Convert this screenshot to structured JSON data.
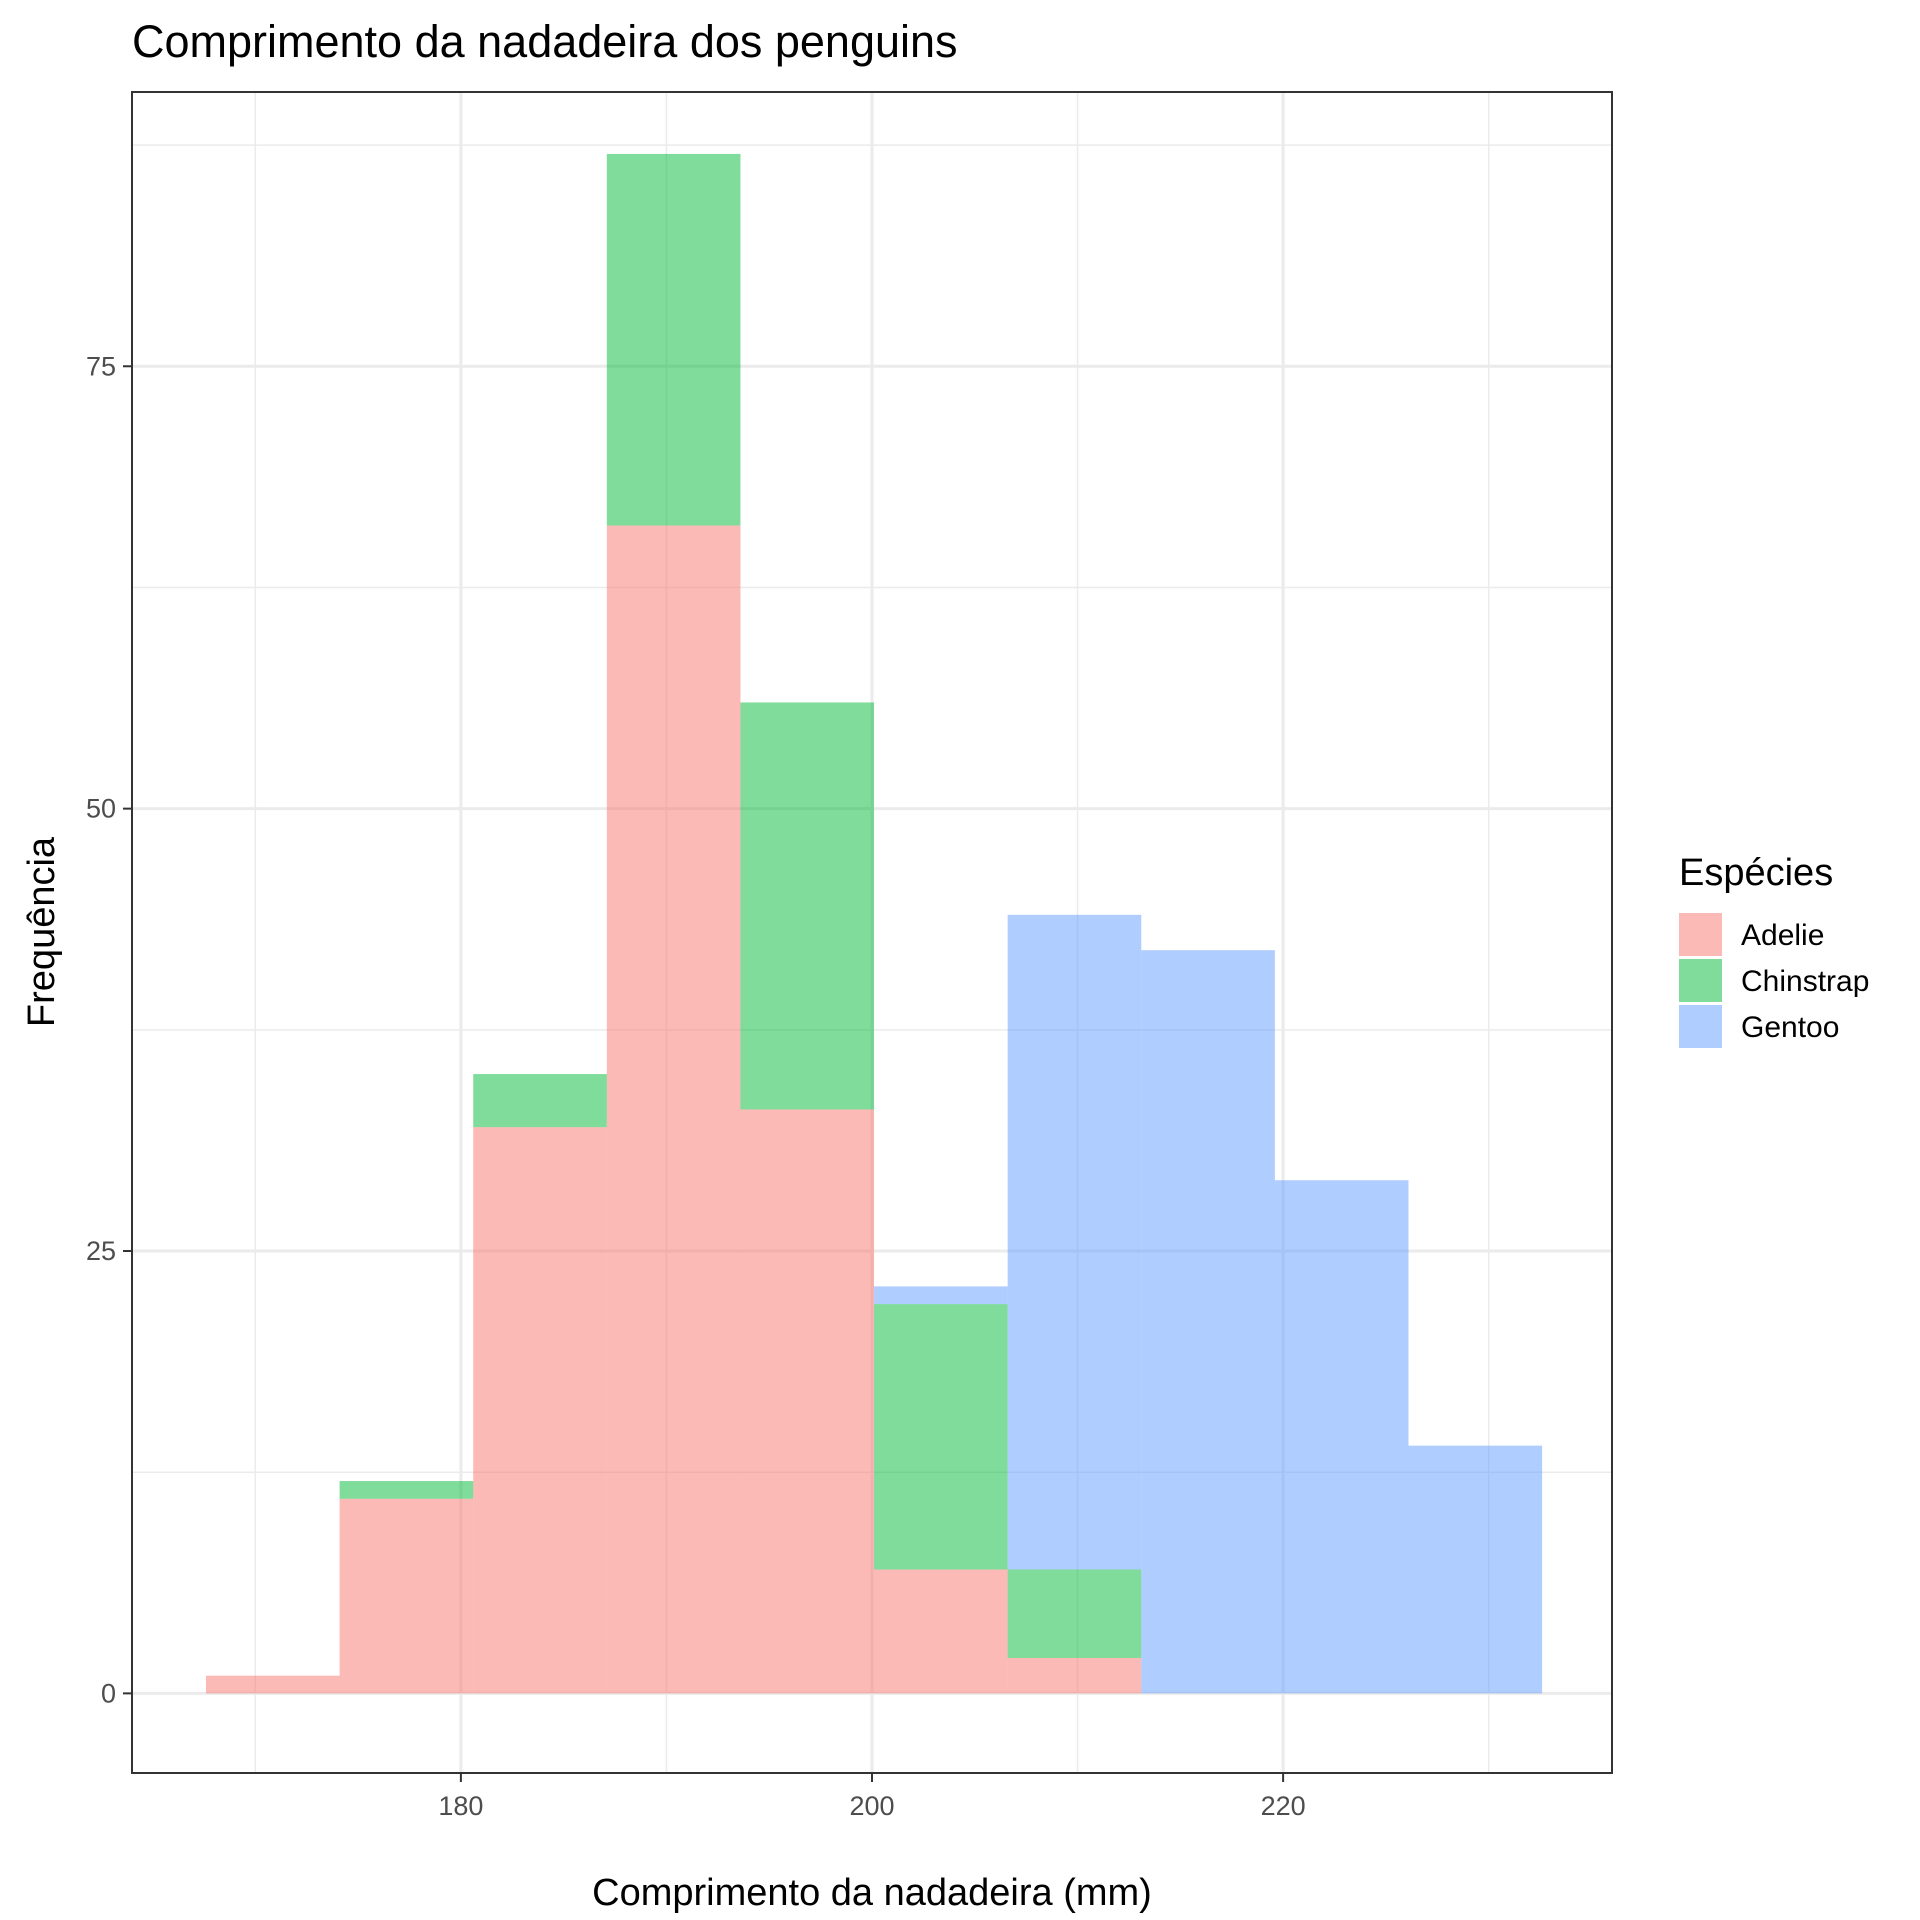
{
  "chart_data": {
    "type": "bar",
    "title": "Comprimento da nadadeira dos penguins",
    "xlabel": "Comprimento da nadadeira (mm)",
    "ylabel": "Frequência",
    "xlim": [
      164.0,
      236.0
    ],
    "ylim": [
      -4.5,
      90.5
    ],
    "x_ticks": [
      180,
      200,
      220
    ],
    "y_ticks": [
      0,
      25,
      50,
      75
    ],
    "x_minor_ticks": [
      170,
      190,
      210,
      230
    ],
    "y_minor_ticks": [
      12.5,
      37.5,
      62.5,
      87.5
    ],
    "bin_edges": [
      167.6,
      174.1,
      180.6,
      187.1,
      193.6,
      200.1,
      206.6,
      213.1,
      219.6,
      226.1,
      232.6
    ],
    "bin_width": 6.5,
    "position": "stacked",
    "grid": true,
    "legend": {
      "title": "Espécies",
      "placement": "right"
    },
    "series": [
      {
        "name": "Adelie",
        "color": "#F8766D",
        "values": [
          1,
          11,
          32,
          66,
          33,
          7,
          2,
          0,
          0,
          0
        ]
      },
      {
        "name": "Chinstrap",
        "color": "#00BA38",
        "values": [
          0,
          1,
          3,
          21,
          23,
          15,
          5,
          0,
          0,
          0
        ]
      },
      {
        "name": "Gentoo",
        "color": "#619CFF",
        "values": [
          0,
          0,
          0,
          0,
          0,
          1,
          37,
          42,
          29,
          14
        ]
      }
    ]
  }
}
